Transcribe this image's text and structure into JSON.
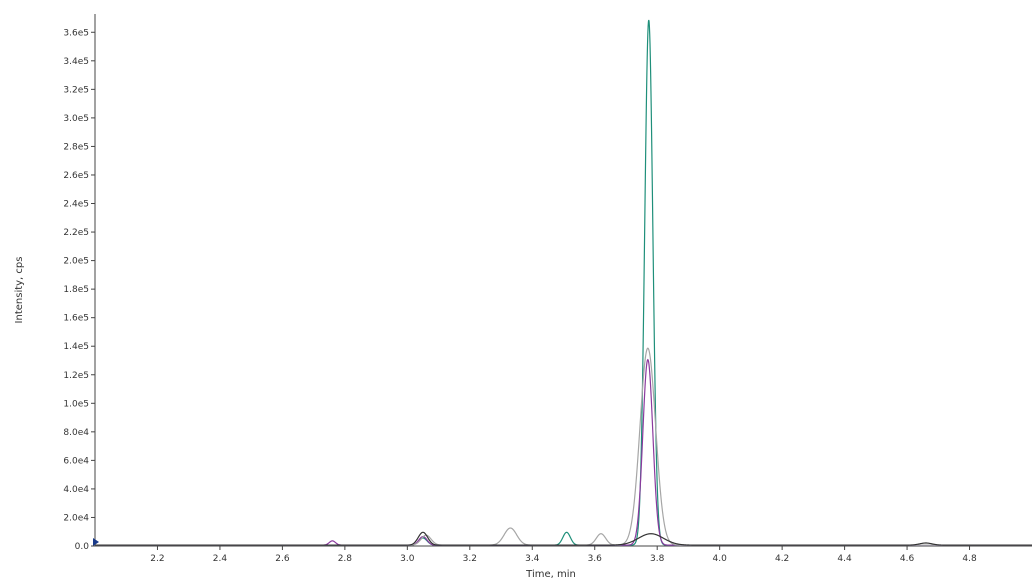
{
  "chart_data": {
    "type": "line",
    "title": "",
    "xlabel": "Time, min",
    "ylabel": "Intensity, cps",
    "xlim": [
      2.0,
      5.0
    ],
    "ylim": [
      0,
      370000
    ],
    "grid": false,
    "x_ticks": [
      2.2,
      2.4,
      2.6,
      2.8,
      3.0,
      3.2,
      3.4,
      3.6,
      3.8,
      4.0,
      4.2,
      4.4,
      4.6,
      4.8
    ],
    "x_tick_labels": [
      "2.2",
      "2.4",
      "2.6",
      "2.8",
      "3.0",
      "3.2",
      "3.4",
      "3.6",
      "3.8",
      "4.0",
      "4.2",
      "4.4",
      "4.6",
      "4.8"
    ],
    "y_ticks": [
      0,
      20000,
      40000,
      60000,
      80000,
      100000,
      120000,
      140000,
      160000,
      180000,
      200000,
      220000,
      240000,
      260000,
      280000,
      300000,
      320000,
      340000,
      360000
    ],
    "y_tick_labels": [
      "0.0",
      "2.0e4",
      "4.0e4",
      "6.0e4",
      "8.0e4",
      "1.0e5",
      "1.2e5",
      "1.4e5",
      "1.6e5",
      "1.8e5",
      "2.0e5",
      "2.2e5",
      "2.4e5",
      "2.6e5",
      "2.8e5",
      "3.0e5",
      "3.2e5",
      "3.4e5",
      "3.6e5"
    ],
    "series": [
      {
        "color": "#1f8f7a",
        "peaks": [
          {
            "center": 3.773,
            "height": 368000,
            "width": 0.013
          },
          {
            "center": 3.51,
            "height": 9000,
            "width": 0.012
          },
          {
            "center": 3.05,
            "height": 5000,
            "width": 0.013
          }
        ]
      },
      {
        "color": "#8b3a9e",
        "peaks": [
          {
            "center": 3.77,
            "height": 130000,
            "width": 0.016
          },
          {
            "center": 3.05,
            "height": 6000,
            "width": 0.013
          },
          {
            "center": 2.76,
            "height": 3000,
            "width": 0.01
          }
        ]
      },
      {
        "color": "#a6a6a6",
        "peaks": [
          {
            "center": 3.77,
            "height": 138000,
            "width": 0.025
          },
          {
            "center": 3.33,
            "height": 12000,
            "width": 0.02
          },
          {
            "center": 3.62,
            "height": 8000,
            "width": 0.015
          },
          {
            "center": 3.06,
            "height": 7000,
            "width": 0.016
          }
        ]
      },
      {
        "color": "#333333",
        "peaks": [
          {
            "center": 3.78,
            "height": 8000,
            "width": 0.04
          },
          {
            "center": 3.05,
            "height": 9000,
            "width": 0.015
          },
          {
            "center": 4.66,
            "height": 1500,
            "width": 0.02
          }
        ]
      }
    ]
  }
}
